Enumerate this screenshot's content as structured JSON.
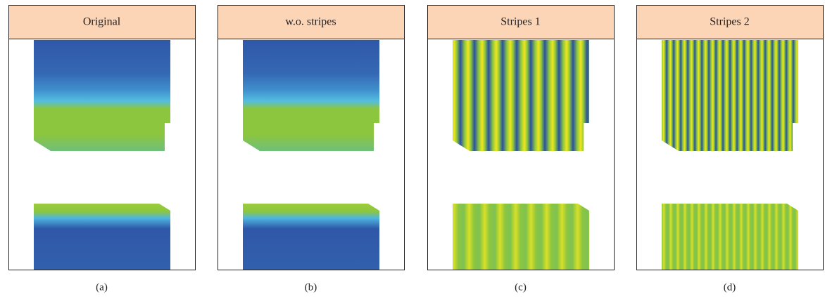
{
  "panels": [
    {
      "title": "Original",
      "caption": "(a)"
    },
    {
      "title": "w.o. stripes",
      "caption": "(b)"
    },
    {
      "title": "Stripes 1",
      "caption": "(c)"
    },
    {
      "title": "Stripes 2",
      "caption": "(d)"
    }
  ]
}
